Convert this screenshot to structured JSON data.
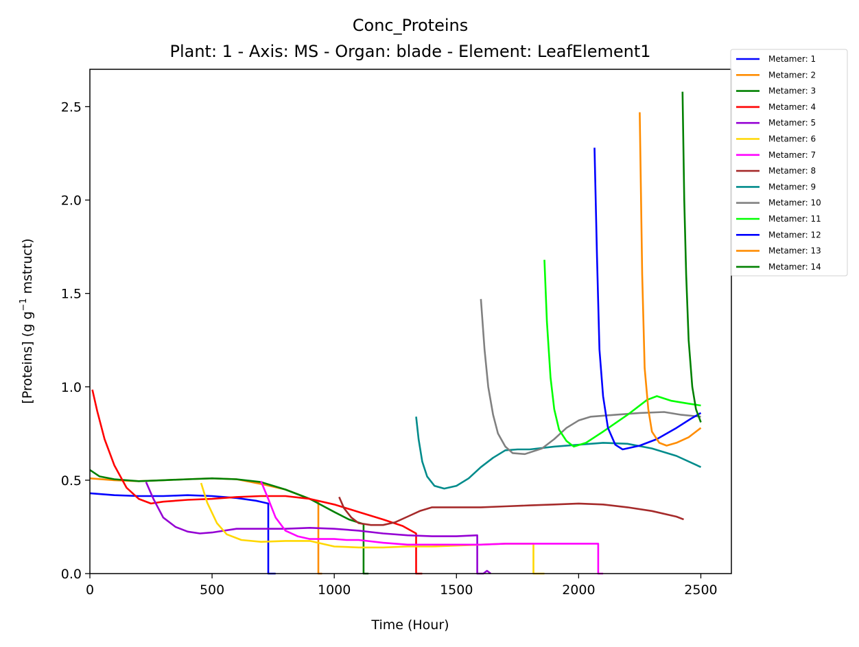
{
  "chart_data": {
    "type": "line",
    "title": "Conc_Proteins",
    "subtitle": "Plant: 1 - Axis: MS - Organ: blade - Element: LeafElement1",
    "xlabel": "Time (Hour)",
    "ylabel_main": "[Proteins] (g g",
    "ylabel_sup": "−1",
    "ylabel_tail": " mstruct)",
    "xlim": [
      0,
      2625
    ],
    "ylim": [
      0,
      2.7
    ],
    "xticks": [
      0,
      500,
      1000,
      1500,
      2000,
      2500
    ],
    "xtick_labels": [
      "0",
      "500",
      "1000",
      "1500",
      "2000",
      "2500"
    ],
    "yticks": [
      0.0,
      0.5,
      1.0,
      1.5,
      2.0,
      2.5
    ],
    "ytick_labels": [
      "0.0",
      "0.5",
      "1.0",
      "1.5",
      "2.0",
      "2.5"
    ],
    "grid": false,
    "legend_position": "outside top-right",
    "series": [
      {
        "name": "Metamer: 1",
        "color": "#0000ff",
        "points": [
          [
            0,
            0.43
          ],
          [
            100,
            0.42
          ],
          [
            200,
            0.415
          ],
          [
            300,
            0.415
          ],
          [
            400,
            0.42
          ],
          [
            500,
            0.415
          ],
          [
            600,
            0.405
          ],
          [
            680,
            0.39
          ],
          [
            730,
            0.375
          ],
          [
            730,
            0.0
          ],
          [
            760,
            0.0
          ]
        ]
      },
      {
        "name": "Metamer: 2",
        "color": "#ff8c00",
        "points": [
          [
            0,
            0.51
          ],
          [
            100,
            0.5
          ],
          [
            200,
            0.495
          ],
          [
            300,
            0.5
          ],
          [
            400,
            0.505
          ],
          [
            500,
            0.51
          ],
          [
            600,
            0.505
          ],
          [
            700,
            0.48
          ],
          [
            800,
            0.45
          ],
          [
            880,
            0.41
          ],
          [
            935,
            0.38
          ],
          [
            935,
            0.0
          ],
          [
            950,
            0.0
          ]
        ]
      },
      {
        "name": "Metamer: 3",
        "color": "#008000",
        "points": [
          [
            0,
            0.555
          ],
          [
            40,
            0.52
          ],
          [
            100,
            0.505
          ],
          [
            200,
            0.495
          ],
          [
            300,
            0.5
          ],
          [
            400,
            0.505
          ],
          [
            500,
            0.51
          ],
          [
            600,
            0.505
          ],
          [
            700,
            0.49
          ],
          [
            800,
            0.45
          ],
          [
            900,
            0.4
          ],
          [
            1000,
            0.33
          ],
          [
            1060,
            0.29
          ],
          [
            1120,
            0.265
          ],
          [
            1120,
            0.0
          ],
          [
            1140,
            0.0
          ]
        ]
      },
      {
        "name": "Metamer: 4",
        "color": "#ff0000",
        "points": [
          [
            10,
            0.985
          ],
          [
            30,
            0.87
          ],
          [
            60,
            0.72
          ],
          [
            100,
            0.58
          ],
          [
            150,
            0.46
          ],
          [
            200,
            0.4
          ],
          [
            250,
            0.375
          ],
          [
            300,
            0.385
          ],
          [
            400,
            0.395
          ],
          [
            500,
            0.4
          ],
          [
            600,
            0.41
          ],
          [
            700,
            0.415
          ],
          [
            800,
            0.415
          ],
          [
            900,
            0.4
          ],
          [
            1000,
            0.37
          ],
          [
            1100,
            0.33
          ],
          [
            1200,
            0.29
          ],
          [
            1280,
            0.255
          ],
          [
            1335,
            0.215
          ],
          [
            1335,
            0.0
          ],
          [
            1360,
            0.0
          ]
        ]
      },
      {
        "name": "Metamer: 5",
        "color": "#9400d3",
        "points": [
          [
            230,
            0.49
          ],
          [
            260,
            0.4
          ],
          [
            300,
            0.3
          ],
          [
            350,
            0.25
          ],
          [
            400,
            0.225
          ],
          [
            450,
            0.215
          ],
          [
            500,
            0.22
          ],
          [
            600,
            0.24
          ],
          [
            700,
            0.24
          ],
          [
            800,
            0.24
          ],
          [
            900,
            0.245
          ],
          [
            1000,
            0.24
          ],
          [
            1100,
            0.23
          ],
          [
            1200,
            0.215
          ],
          [
            1300,
            0.205
          ],
          [
            1400,
            0.2
          ],
          [
            1500,
            0.2
          ],
          [
            1585,
            0.205
          ],
          [
            1585,
            0.0
          ],
          [
            1610,
            0.0
          ],
          [
            1625,
            0.015
          ],
          [
            1640,
            0.0
          ]
        ]
      },
      {
        "name": "Metamer: 6",
        "color": "#ffd700",
        "points": [
          [
            455,
            0.485
          ],
          [
            480,
            0.38
          ],
          [
            520,
            0.27
          ],
          [
            560,
            0.21
          ],
          [
            620,
            0.18
          ],
          [
            700,
            0.17
          ],
          [
            800,
            0.175
          ],
          [
            900,
            0.175
          ],
          [
            1000,
            0.145
          ],
          [
            1100,
            0.14
          ],
          [
            1200,
            0.14
          ],
          [
            1300,
            0.145
          ],
          [
            1400,
            0.145
          ],
          [
            1500,
            0.15
          ],
          [
            1600,
            0.155
          ],
          [
            1700,
            0.16
          ],
          [
            1815,
            0.16
          ],
          [
            1815,
            0.0
          ],
          [
            1840,
            0.0
          ],
          [
            1860,
            0.0
          ]
        ]
      },
      {
        "name": "Metamer: 7",
        "color": "#ff00ff",
        "points": [
          [
            700,
            0.495
          ],
          [
            730,
            0.4
          ],
          [
            760,
            0.3
          ],
          [
            800,
            0.23
          ],
          [
            850,
            0.2
          ],
          [
            900,
            0.185
          ],
          [
            950,
            0.185
          ],
          [
            1000,
            0.185
          ],
          [
            1050,
            0.18
          ],
          [
            1100,
            0.18
          ],
          [
            1200,
            0.165
          ],
          [
            1300,
            0.155
          ],
          [
            1400,
            0.155
          ],
          [
            1500,
            0.155
          ],
          [
            1600,
            0.155
          ],
          [
            1700,
            0.16
          ],
          [
            1800,
            0.16
          ],
          [
            1900,
            0.16
          ],
          [
            2000,
            0.16
          ],
          [
            2080,
            0.16
          ],
          [
            2080,
            0.0
          ],
          [
            2100,
            0.0
          ]
        ]
      },
      {
        "name": "Metamer: 8",
        "color": "#a52a2a",
        "points": [
          [
            1020,
            0.41
          ],
          [
            1040,
            0.35
          ],
          [
            1070,
            0.3
          ],
          [
            1100,
            0.27
          ],
          [
            1150,
            0.26
          ],
          [
            1200,
            0.26
          ],
          [
            1250,
            0.275
          ],
          [
            1300,
            0.305
          ],
          [
            1350,
            0.335
          ],
          [
            1400,
            0.355
          ],
          [
            1500,
            0.355
          ],
          [
            1600,
            0.355
          ],
          [
            1700,
            0.36
          ],
          [
            1800,
            0.365
          ],
          [
            1900,
            0.37
          ],
          [
            2000,
            0.375
          ],
          [
            2100,
            0.37
          ],
          [
            2200,
            0.355
          ],
          [
            2300,
            0.335
          ],
          [
            2400,
            0.305
          ],
          [
            2430,
            0.29
          ]
        ]
      },
      {
        "name": "Metamer: 9",
        "color": "#008b8b",
        "points": [
          [
            1335,
            0.84
          ],
          [
            1345,
            0.72
          ],
          [
            1360,
            0.6
          ],
          [
            1380,
            0.52
          ],
          [
            1410,
            0.47
          ],
          [
            1450,
            0.455
          ],
          [
            1500,
            0.47
          ],
          [
            1550,
            0.51
          ],
          [
            1600,
            0.57
          ],
          [
            1650,
            0.62
          ],
          [
            1700,
            0.66
          ],
          [
            1750,
            0.665
          ],
          [
            1800,
            0.665
          ],
          [
            1900,
            0.68
          ],
          [
            2000,
            0.69
          ],
          [
            2100,
            0.7
          ],
          [
            2200,
            0.695
          ],
          [
            2300,
            0.67
          ],
          [
            2400,
            0.63
          ],
          [
            2500,
            0.57
          ]
        ]
      },
      {
        "name": "Metamer: 10",
        "color": "#808080",
        "points": [
          [
            1600,
            1.47
          ],
          [
            1615,
            1.2
          ],
          [
            1630,
            1.0
          ],
          [
            1650,
            0.85
          ],
          [
            1670,
            0.75
          ],
          [
            1700,
            0.68
          ],
          [
            1730,
            0.645
          ],
          [
            1780,
            0.64
          ],
          [
            1850,
            0.67
          ],
          [
            1900,
            0.72
          ],
          [
            1950,
            0.78
          ],
          [
            2000,
            0.82
          ],
          [
            2050,
            0.84
          ],
          [
            2150,
            0.85
          ],
          [
            2250,
            0.86
          ],
          [
            2350,
            0.865
          ],
          [
            2420,
            0.85
          ],
          [
            2500,
            0.84
          ]
        ]
      },
      {
        "name": "Metamer: 11",
        "color": "#00ff00",
        "points": [
          [
            1860,
            1.68
          ],
          [
            1870,
            1.35
          ],
          [
            1885,
            1.05
          ],
          [
            1900,
            0.88
          ],
          [
            1920,
            0.77
          ],
          [
            1950,
            0.71
          ],
          [
            1980,
            0.68
          ],
          [
            2030,
            0.7
          ],
          [
            2100,
            0.76
          ],
          [
            2200,
            0.85
          ],
          [
            2280,
            0.93
          ],
          [
            2320,
            0.95
          ],
          [
            2380,
            0.925
          ],
          [
            2450,
            0.91
          ],
          [
            2500,
            0.9
          ]
        ]
      },
      {
        "name": "Metamer: 12",
        "color": "#0000ff",
        "points": [
          [
            2065,
            2.28
          ],
          [
            2075,
            1.7
          ],
          [
            2085,
            1.2
          ],
          [
            2100,
            0.95
          ],
          [
            2120,
            0.78
          ],
          [
            2150,
            0.69
          ],
          [
            2180,
            0.665
          ],
          [
            2250,
            0.685
          ],
          [
            2320,
            0.72
          ],
          [
            2400,
            0.78
          ],
          [
            2460,
            0.83
          ],
          [
            2500,
            0.86
          ]
        ]
      },
      {
        "name": "Metamer: 13",
        "color": "#ff8c00",
        "points": [
          [
            2250,
            2.47
          ],
          [
            2260,
            1.6
          ],
          [
            2270,
            1.1
          ],
          [
            2285,
            0.88
          ],
          [
            2300,
            0.76
          ],
          [
            2330,
            0.7
          ],
          [
            2360,
            0.685
          ],
          [
            2400,
            0.7
          ],
          [
            2450,
            0.73
          ],
          [
            2500,
            0.78
          ]
        ]
      },
      {
        "name": "Metamer: 14",
        "color": "#008000",
        "points": [
          [
            2425,
            2.58
          ],
          [
            2432,
            2.0
          ],
          [
            2440,
            1.6
          ],
          [
            2450,
            1.25
          ],
          [
            2465,
            1.0
          ],
          [
            2480,
            0.88
          ],
          [
            2500,
            0.81
          ]
        ]
      }
    ]
  }
}
